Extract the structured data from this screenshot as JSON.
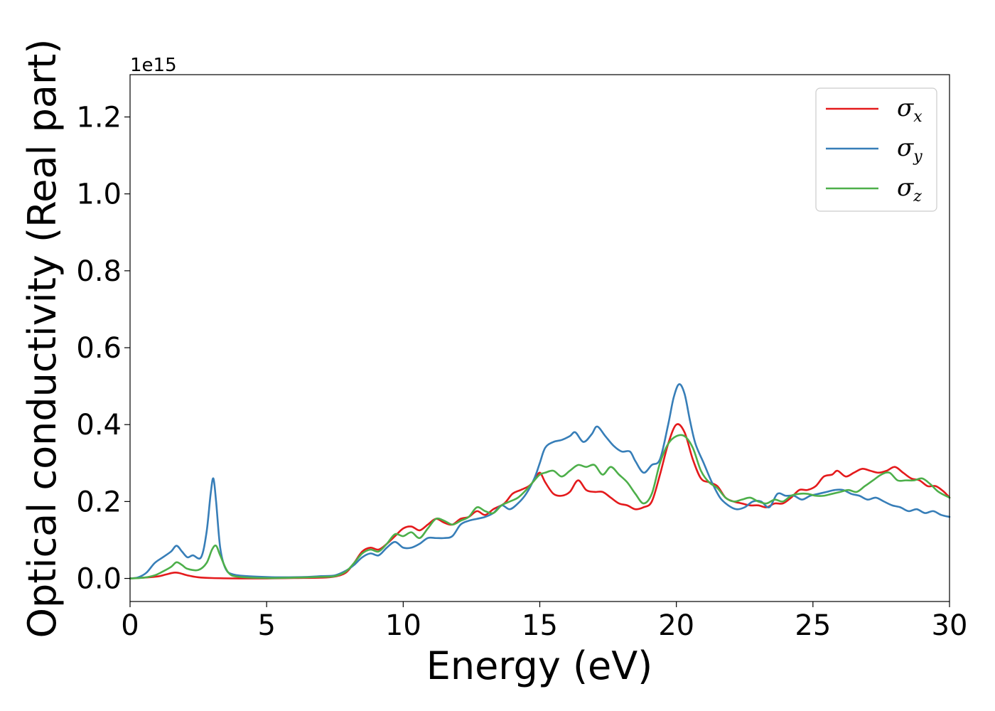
{
  "chart_data": {
    "type": "line",
    "xlabel": "Energy (eV)",
    "ylabel": "Optical conductivity (Real part)",
    "y_offset_text": "1e15",
    "xlim": [
      0,
      30
    ],
    "ylim": [
      -0.06,
      1.31
    ],
    "xticks": [
      0,
      5,
      10,
      15,
      20,
      25,
      30
    ],
    "xtick_labels": [
      "0",
      "5",
      "10",
      "15",
      "20",
      "25",
      "30"
    ],
    "yticks": [
      0.0,
      0.2,
      0.4,
      0.6,
      0.8,
      1.0,
      1.2
    ],
    "ytick_labels": [
      "0.0",
      "0.2",
      "0.4",
      "0.6",
      "0.8",
      "1.0",
      "1.2"
    ],
    "grid": false,
    "legend_position": "top-right",
    "series": [
      {
        "name": "σx",
        "symbol": "σ",
        "subscript": "x",
        "color": "#e41a1c",
        "x": [
          0,
          0.5,
          1.0,
          1.3,
          1.6,
          1.8,
          2.1,
          2.5,
          3.0,
          4.0,
          5.0,
          6.0,
          7.0,
          7.5,
          7.9,
          8.2,
          8.5,
          8.8,
          9.1,
          9.4,
          9.7,
          10.0,
          10.3,
          10.6,
          10.9,
          11.2,
          11.5,
          11.8,
          12.1,
          12.4,
          12.7,
          13.0,
          13.3,
          13.7,
          14.0,
          14.3,
          14.6,
          14.8,
          15.0,
          15.2,
          15.5,
          15.8,
          16.1,
          16.4,
          16.7,
          17.0,
          17.3,
          17.6,
          17.9,
          18.2,
          18.5,
          18.8,
          19.1,
          19.4,
          19.7,
          20.0,
          20.3,
          20.6,
          20.9,
          21.2,
          21.5,
          21.8,
          22.1,
          22.4,
          22.7,
          23.0,
          23.3,
          23.6,
          23.9,
          24.2,
          24.5,
          24.8,
          25.1,
          25.4,
          25.7,
          25.9,
          26.2,
          26.5,
          26.8,
          27.1,
          27.4,
          27.7,
          28.0,
          28.3,
          28.6,
          28.9,
          29.2,
          29.5,
          29.8,
          30.0
        ],
        "y": [
          0.0,
          0.002,
          0.005,
          0.01,
          0.015,
          0.014,
          0.008,
          0.003,
          0.001,
          0.0,
          0.0,
          0.001,
          0.002,
          0.005,
          0.015,
          0.04,
          0.07,
          0.08,
          0.075,
          0.09,
          0.11,
          0.13,
          0.135,
          0.125,
          0.14,
          0.155,
          0.145,
          0.14,
          0.155,
          0.16,
          0.175,
          0.165,
          0.18,
          0.195,
          0.22,
          0.23,
          0.24,
          0.255,
          0.275,
          0.25,
          0.22,
          0.215,
          0.225,
          0.255,
          0.23,
          0.225,
          0.225,
          0.21,
          0.195,
          0.19,
          0.18,
          0.185,
          0.2,
          0.27,
          0.35,
          0.4,
          0.38,
          0.31,
          0.26,
          0.25,
          0.24,
          0.21,
          0.2,
          0.195,
          0.19,
          0.19,
          0.185,
          0.195,
          0.195,
          0.21,
          0.23,
          0.23,
          0.24,
          0.265,
          0.27,
          0.28,
          0.265,
          0.275,
          0.285,
          0.28,
          0.275,
          0.28,
          0.29,
          0.275,
          0.26,
          0.255,
          0.24,
          0.24,
          0.225,
          0.21
        ]
      },
      {
        "name": "σy",
        "symbol": "σ",
        "subscript": "y",
        "color": "#377eb8",
        "x": [
          0,
          0.3,
          0.6,
          0.9,
          1.2,
          1.5,
          1.7,
          1.9,
          2.1,
          2.3,
          2.6,
          2.8,
          2.95,
          3.05,
          3.15,
          3.3,
          3.5,
          3.8,
          4.5,
          5.5,
          6.5,
          7.0,
          7.5,
          7.9,
          8.2,
          8.5,
          8.8,
          9.1,
          9.4,
          9.7,
          10.0,
          10.3,
          10.6,
          10.9,
          11.2,
          11.5,
          11.8,
          12.1,
          12.4,
          12.7,
          13.0,
          13.3,
          13.6,
          13.9,
          14.2,
          14.5,
          14.8,
          15.0,
          15.2,
          15.5,
          15.8,
          16.1,
          16.3,
          16.6,
          16.9,
          17.1,
          17.4,
          17.7,
          18.0,
          18.3,
          18.5,
          18.8,
          19.1,
          19.4,
          19.7,
          19.9,
          20.1,
          20.3,
          20.5,
          20.7,
          21.0,
          21.3,
          21.6,
          21.9,
          22.2,
          22.5,
          22.8,
          23.1,
          23.4,
          23.7,
          24.0,
          24.3,
          24.6,
          24.9,
          25.2,
          25.5,
          25.8,
          26.1,
          26.4,
          26.7,
          27.0,
          27.3,
          27.6,
          27.9,
          28.2,
          28.5,
          28.8,
          29.1,
          29.4,
          29.7,
          30.0
        ],
        "y": [
          0.0,
          0.003,
          0.015,
          0.04,
          0.055,
          0.07,
          0.085,
          0.07,
          0.055,
          0.06,
          0.055,
          0.12,
          0.22,
          0.26,
          0.2,
          0.08,
          0.025,
          0.01,
          0.005,
          0.003,
          0.004,
          0.006,
          0.008,
          0.02,
          0.035,
          0.055,
          0.065,
          0.06,
          0.08,
          0.095,
          0.08,
          0.08,
          0.09,
          0.105,
          0.105,
          0.105,
          0.11,
          0.14,
          0.15,
          0.155,
          0.16,
          0.17,
          0.19,
          0.18,
          0.195,
          0.22,
          0.26,
          0.3,
          0.34,
          0.355,
          0.36,
          0.37,
          0.38,
          0.355,
          0.375,
          0.395,
          0.37,
          0.345,
          0.33,
          0.33,
          0.305,
          0.275,
          0.295,
          0.31,
          0.4,
          0.47,
          0.505,
          0.48,
          0.41,
          0.35,
          0.3,
          0.25,
          0.21,
          0.19,
          0.18,
          0.185,
          0.2,
          0.2,
          0.185,
          0.22,
          0.215,
          0.215,
          0.205,
          0.215,
          0.22,
          0.225,
          0.23,
          0.23,
          0.22,
          0.215,
          0.205,
          0.21,
          0.2,
          0.19,
          0.185,
          0.175,
          0.18,
          0.17,
          0.175,
          0.165,
          0.16
        ]
      },
      {
        "name": "σz",
        "symbol": "σ",
        "subscript": "z",
        "color": "#4daf4a",
        "x": [
          0,
          0.5,
          0.9,
          1.2,
          1.5,
          1.7,
          1.9,
          2.1,
          2.5,
          2.8,
          3.0,
          3.15,
          3.3,
          3.6,
          4.0,
          5.0,
          6.0,
          7.0,
          7.5,
          7.9,
          8.2,
          8.5,
          8.8,
          9.1,
          9.4,
          9.7,
          10.0,
          10.3,
          10.6,
          10.9,
          11.2,
          11.5,
          11.8,
          12.1,
          12.4,
          12.7,
          13.0,
          13.3,
          13.6,
          13.9,
          14.2,
          14.5,
          14.8,
          15.0,
          15.2,
          15.5,
          15.8,
          16.1,
          16.4,
          16.7,
          17.0,
          17.3,
          17.6,
          17.9,
          18.2,
          18.5,
          18.8,
          19.1,
          19.4,
          19.7,
          20.0,
          20.3,
          20.6,
          20.9,
          21.2,
          21.5,
          21.8,
          22.1,
          22.4,
          22.7,
          23.0,
          23.3,
          23.6,
          23.9,
          24.2,
          24.5,
          24.8,
          25.1,
          25.4,
          25.7,
          26.0,
          26.3,
          26.6,
          26.9,
          27.2,
          27.5,
          27.8,
          28.1,
          28.4,
          28.7,
          29.0,
          29.3,
          29.6,
          30.0
        ],
        "y": [
          0.0,
          0.002,
          0.008,
          0.018,
          0.03,
          0.042,
          0.035,
          0.025,
          0.022,
          0.04,
          0.075,
          0.085,
          0.06,
          0.015,
          0.004,
          0.001,
          0.002,
          0.004,
          0.006,
          0.018,
          0.04,
          0.065,
          0.075,
          0.07,
          0.09,
          0.115,
          0.11,
          0.12,
          0.105,
          0.13,
          0.155,
          0.15,
          0.14,
          0.15,
          0.16,
          0.185,
          0.175,
          0.17,
          0.19,
          0.2,
          0.21,
          0.23,
          0.255,
          0.27,
          0.275,
          0.28,
          0.265,
          0.28,
          0.295,
          0.29,
          0.295,
          0.27,
          0.29,
          0.27,
          0.25,
          0.22,
          0.195,
          0.22,
          0.3,
          0.35,
          0.37,
          0.37,
          0.34,
          0.28,
          0.25,
          0.235,
          0.21,
          0.2,
          0.205,
          0.21,
          0.2,
          0.195,
          0.205,
          0.2,
          0.215,
          0.22,
          0.22,
          0.215,
          0.215,
          0.22,
          0.225,
          0.23,
          0.225,
          0.24,
          0.255,
          0.27,
          0.275,
          0.255,
          0.255,
          0.255,
          0.26,
          0.245,
          0.225,
          0.21
        ]
      }
    ]
  }
}
